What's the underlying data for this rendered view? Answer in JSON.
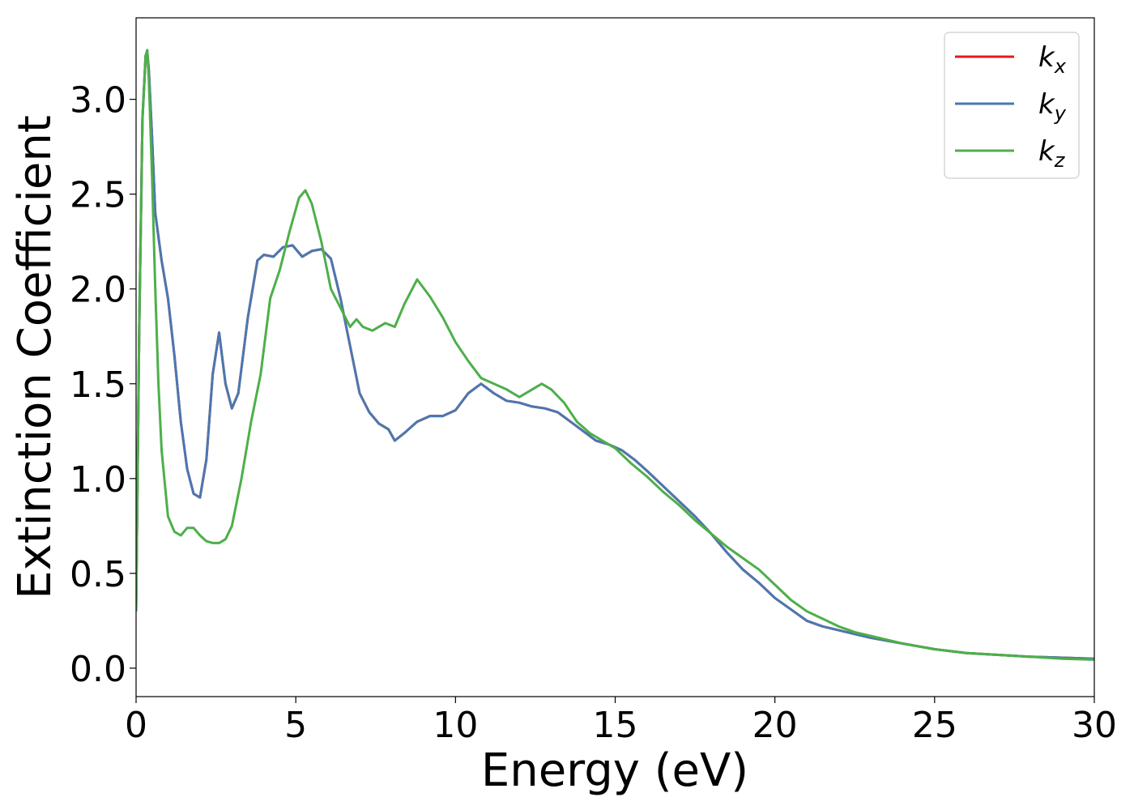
{
  "chart_data": {
    "type": "line",
    "title": "",
    "xlabel": "Energy (eV)",
    "ylabel": "Extinction Coefficient",
    "xlim": [
      0,
      30
    ],
    "ylim": [
      -0.15,
      3.43
    ],
    "grid": false,
    "legend_position": "top-right",
    "xticks": [
      0,
      5,
      10,
      15,
      20,
      25,
      30
    ],
    "xtick_labels": [
      "0",
      "5",
      "10",
      "15",
      "20",
      "25",
      "30"
    ],
    "yticks": [
      0.0,
      0.5,
      1.0,
      1.5,
      2.0,
      2.5,
      3.0
    ],
    "ytick_labels": [
      "0.0",
      "0.5",
      "1.0",
      "1.5",
      "2.0",
      "2.5",
      "3.0"
    ],
    "series": [
      {
        "name": "k_x",
        "legend_base": "k",
        "legend_sub": "x",
        "color": "#e41a1c",
        "x": [
          0,
          0.1,
          0.2,
          0.3,
          0.35,
          0.4,
          0.5,
          0.6,
          0.8,
          1.0,
          1.2,
          1.4,
          1.6,
          1.8,
          2.0,
          2.2,
          2.4,
          2.6,
          2.8,
          3.0,
          3.2,
          3.5,
          3.8,
          4.0,
          4.3,
          4.6,
          4.9,
          5.2,
          5.5,
          5.8,
          6.1,
          6.4,
          6.7,
          7.0,
          7.3,
          7.6,
          7.9,
          8.1,
          8.4,
          8.8,
          9.2,
          9.6,
          10.0,
          10.4,
          10.8,
          11.2,
          11.6,
          12.0,
          12.4,
          12.8,
          13.2,
          13.6,
          14.0,
          14.4,
          14.8,
          15.2,
          15.6,
          16.0,
          16.5,
          17.0,
          17.5,
          18.0,
          18.5,
          19.0,
          19.5,
          20.0,
          20.5,
          21.0,
          21.5,
          22.0,
          22.5,
          23.0,
          24.0,
          25.0,
          26.0,
          27.0,
          28.0,
          29.0,
          30.0
        ],
        "y": [
          0.3,
          1.8,
          2.9,
          3.23,
          3.25,
          3.15,
          2.8,
          2.4,
          2.15,
          1.95,
          1.65,
          1.3,
          1.05,
          0.92,
          0.9,
          1.1,
          1.55,
          1.77,
          1.5,
          1.37,
          1.45,
          1.85,
          2.15,
          2.18,
          2.17,
          2.22,
          2.23,
          2.17,
          2.2,
          2.21,
          2.16,
          1.95,
          1.7,
          1.45,
          1.35,
          1.29,
          1.26,
          1.2,
          1.24,
          1.3,
          1.33,
          1.33,
          1.36,
          1.45,
          1.5,
          1.45,
          1.41,
          1.4,
          1.38,
          1.37,
          1.35,
          1.3,
          1.25,
          1.2,
          1.18,
          1.15,
          1.1,
          1.04,
          0.96,
          0.88,
          0.8,
          0.71,
          0.61,
          0.52,
          0.45,
          0.37,
          0.31,
          0.25,
          0.22,
          0.2,
          0.18,
          0.16,
          0.13,
          0.1,
          0.08,
          0.07,
          0.06,
          0.055,
          0.05
        ]
      },
      {
        "name": "k_y",
        "legend_base": "k",
        "legend_sub": "y",
        "color": "#4a78b0",
        "x": [
          0,
          0.1,
          0.2,
          0.3,
          0.35,
          0.4,
          0.5,
          0.6,
          0.8,
          1.0,
          1.2,
          1.4,
          1.6,
          1.8,
          2.0,
          2.2,
          2.4,
          2.6,
          2.8,
          3.0,
          3.2,
          3.5,
          3.8,
          4.0,
          4.3,
          4.6,
          4.9,
          5.2,
          5.5,
          5.8,
          6.1,
          6.4,
          6.7,
          7.0,
          7.3,
          7.6,
          7.9,
          8.1,
          8.4,
          8.8,
          9.2,
          9.6,
          10.0,
          10.4,
          10.8,
          11.2,
          11.6,
          12.0,
          12.4,
          12.8,
          13.2,
          13.6,
          14.0,
          14.4,
          14.8,
          15.2,
          15.6,
          16.0,
          16.5,
          17.0,
          17.5,
          18.0,
          18.5,
          19.0,
          19.5,
          20.0,
          20.5,
          21.0,
          21.5,
          22.0,
          22.5,
          23.0,
          24.0,
          25.0,
          26.0,
          27.0,
          28.0,
          29.0,
          30.0
        ],
        "y": [
          0.3,
          1.8,
          2.9,
          3.23,
          3.25,
          3.15,
          2.8,
          2.4,
          2.15,
          1.95,
          1.65,
          1.3,
          1.05,
          0.92,
          0.9,
          1.1,
          1.55,
          1.77,
          1.5,
          1.37,
          1.45,
          1.85,
          2.15,
          2.18,
          2.17,
          2.22,
          2.23,
          2.17,
          2.2,
          2.21,
          2.16,
          1.95,
          1.7,
          1.45,
          1.35,
          1.29,
          1.26,
          1.2,
          1.24,
          1.3,
          1.33,
          1.33,
          1.36,
          1.45,
          1.5,
          1.45,
          1.41,
          1.4,
          1.38,
          1.37,
          1.35,
          1.3,
          1.25,
          1.2,
          1.18,
          1.15,
          1.1,
          1.04,
          0.96,
          0.88,
          0.8,
          0.71,
          0.61,
          0.52,
          0.45,
          0.37,
          0.31,
          0.25,
          0.22,
          0.2,
          0.18,
          0.16,
          0.13,
          0.1,
          0.08,
          0.07,
          0.06,
          0.055,
          0.05
        ]
      },
      {
        "name": "k_z",
        "legend_base": "k",
        "legend_sub": "z",
        "color": "#4daf4a",
        "x": [
          0,
          0.1,
          0.2,
          0.3,
          0.35,
          0.4,
          0.5,
          0.6,
          0.7,
          0.8,
          1.0,
          1.2,
          1.4,
          1.6,
          1.8,
          2.0,
          2.2,
          2.4,
          2.6,
          2.8,
          3.0,
          3.3,
          3.6,
          3.9,
          4.2,
          4.5,
          4.8,
          5.1,
          5.3,
          5.5,
          5.8,
          6.1,
          6.4,
          6.7,
          6.9,
          7.1,
          7.4,
          7.8,
          8.1,
          8.4,
          8.8,
          9.2,
          9.6,
          10.0,
          10.4,
          10.8,
          11.2,
          11.6,
          12.0,
          12.4,
          12.7,
          13.0,
          13.4,
          13.8,
          14.2,
          14.6,
          15.0,
          15.5,
          16.0,
          16.5,
          17.0,
          17.5,
          18.0,
          18.5,
          19.0,
          19.5,
          20.0,
          20.5,
          21.0,
          21.5,
          22.0,
          22.5,
          23.0,
          24.0,
          25.0,
          26.0,
          27.0,
          28.0,
          29.0,
          30.0
        ],
        "y": [
          0.3,
          1.8,
          2.9,
          3.23,
          3.26,
          3.1,
          2.6,
          2.0,
          1.5,
          1.15,
          0.8,
          0.72,
          0.7,
          0.74,
          0.74,
          0.7,
          0.67,
          0.66,
          0.66,
          0.68,
          0.75,
          1.0,
          1.3,
          1.55,
          1.95,
          2.1,
          2.3,
          2.48,
          2.52,
          2.45,
          2.25,
          2.0,
          1.9,
          1.8,
          1.84,
          1.8,
          1.78,
          1.82,
          1.8,
          1.92,
          2.05,
          1.96,
          1.85,
          1.72,
          1.62,
          1.53,
          1.5,
          1.47,
          1.43,
          1.47,
          1.5,
          1.47,
          1.4,
          1.3,
          1.24,
          1.2,
          1.16,
          1.08,
          1.01,
          0.93,
          0.86,
          0.78,
          0.71,
          0.64,
          0.58,
          0.52,
          0.44,
          0.36,
          0.3,
          0.26,
          0.22,
          0.19,
          0.17,
          0.13,
          0.1,
          0.08,
          0.07,
          0.06,
          0.05,
          0.045
        ]
      }
    ]
  }
}
